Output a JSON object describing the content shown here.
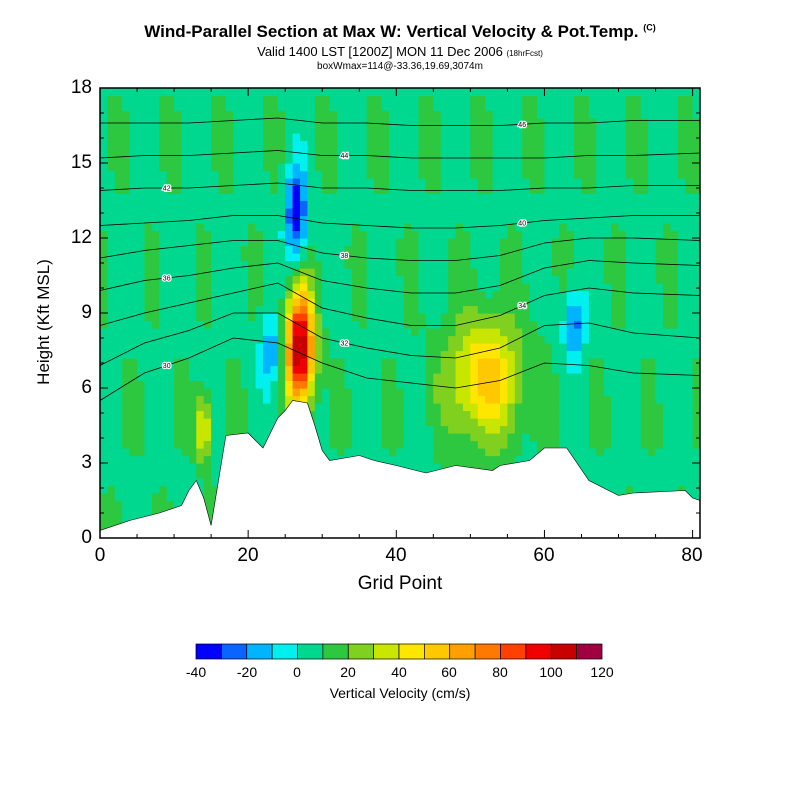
{
  "chart_data": {
    "type": "heatmap",
    "title": "Wind-Parallel Section at Max W: Vertical Velocity & Pot.Temp.",
    "title_mark": "(C)",
    "subtitle": "Valid 1400 LST [1200Z] MON 11 Dec 2006",
    "subtitle_note": "(18hrFcst)",
    "info": "boxWmax=114@-33.36,19.69,3074m",
    "xlabel": "Grid Point",
    "ylabel": "Height (Kft MSL)",
    "xlim": [
      0,
      81
    ],
    "ylim": [
      0,
      18
    ],
    "x_ticks": [
      "0",
      "20",
      "40",
      "60",
      "80"
    ],
    "y_ticks": [
      "0",
      "3",
      "6",
      "9",
      "12",
      "15",
      "18"
    ],
    "colorbar": {
      "label": "Vertical Velocity (cm/s)",
      "levels": [
        -40,
        -30,
        -20,
        -10,
        0,
        10,
        20,
        30,
        40,
        50,
        60,
        70,
        80,
        90,
        100,
        110,
        120
      ],
      "tick_labels": [
        "-40",
        "-20",
        "0",
        "20",
        "40",
        "60",
        "80",
        "100",
        "120"
      ],
      "colors": [
        "#0000ff",
        "#0a64ff",
        "#00b4ff",
        "#00f0f0",
        "#00d890",
        "#2ec840",
        "#80d020",
        "#c8e600",
        "#ffe600",
        "#ffc800",
        "#ffa000",
        "#ff7800",
        "#ff4000",
        "#f00000",
        "#c80000",
        "#a00040"
      ]
    },
    "background_w": 8,
    "updraft_cores": [
      {
        "x": 27,
        "y": 7.6,
        "peak": 114
      },
      {
        "x": 52,
        "y": 6.4,
        "peak": 55
      },
      {
        "x": 14,
        "y": 4.4,
        "peak": 50
      }
    ],
    "downdraft_cores": [
      {
        "x": 26.5,
        "y": 13,
        "peak": -40
      },
      {
        "x": 23,
        "y": 7.5,
        "peak": -20
      },
      {
        "x": 64,
        "y": 8.5,
        "peak": -25
      }
    ],
    "terrain": {
      "x": [
        0,
        4,
        8,
        11,
        12,
        13,
        14,
        15,
        16,
        17,
        20,
        22,
        23,
        24,
        25,
        26,
        28,
        29,
        30,
        31,
        35,
        37,
        40,
        44,
        48,
        53,
        54,
        58,
        60,
        63,
        66,
        68,
        70,
        72,
        79,
        80,
        81
      ],
      "height": [
        0.3,
        0.7,
        1.0,
        1.3,
        1.9,
        2.3,
        1.6,
        0.5,
        2.3,
        4.1,
        4.2,
        3.6,
        4.2,
        4.8,
        5.1,
        5.5,
        5.4,
        4.5,
        3.5,
        3.1,
        3.3,
        3.1,
        2.9,
        2.6,
        2.9,
        2.7,
        2.9,
        3.1,
        3.6,
        3.6,
        2.3,
        2.0,
        1.7,
        1.8,
        1.9,
        1.6,
        1.5
      ]
    },
    "theta_contours": [
      {
        "label": "30",
        "heights": [
          5.5,
          6.6,
          7.2,
          8.0,
          7.8,
          7.0,
          6.4,
          6.2,
          6.0,
          6.3,
          7.0,
          6.9,
          6.6,
          6.5
        ]
      },
      {
        "label": "32",
        "heights": [
          6.9,
          7.8,
          8.3,
          9.0,
          9.0,
          8.0,
          7.6,
          7.3,
          7.2,
          7.6,
          8.5,
          8.6,
          8.2,
          8.0
        ]
      },
      {
        "label": "34",
        "heights": [
          8.5,
          9.0,
          9.4,
          9.8,
          10.2,
          9.2,
          8.8,
          8.5,
          8.5,
          8.9,
          9.7,
          10.0,
          9.8,
          9.7
        ]
      },
      {
        "label": "36",
        "heights": [
          9.9,
          10.3,
          10.5,
          10.8,
          11.0,
          10.3,
          10.0,
          9.8,
          9.8,
          10.1,
          10.8,
          11.1,
          11.0,
          10.9
        ]
      },
      {
        "label": "38",
        "heights": [
          11.2,
          11.5,
          11.7,
          11.9,
          11.9,
          11.4,
          11.2,
          11.1,
          11.1,
          11.3,
          11.8,
          12.0,
          12.0,
          11.9
        ]
      },
      {
        "label": "40",
        "heights": [
          12.5,
          12.6,
          12.7,
          12.9,
          12.9,
          12.6,
          12.5,
          12.4,
          12.4,
          12.5,
          12.7,
          12.8,
          12.9,
          12.9
        ]
      },
      {
        "label": "42",
        "heights": [
          13.9,
          14.0,
          14.0,
          14.1,
          14.2,
          14.0,
          14.0,
          13.9,
          13.9,
          13.9,
          14.0,
          14.0,
          14.1,
          14.1
        ]
      },
      {
        "label": "44",
        "heights": [
          15.2,
          15.3,
          15.3,
          15.4,
          15.5,
          15.3,
          15.3,
          15.2,
          15.2,
          15.2,
          15.2,
          15.3,
          15.3,
          15.4
        ]
      },
      {
        "label": "46",
        "heights": [
          16.6,
          16.6,
          16.6,
          16.7,
          16.8,
          16.6,
          16.6,
          16.5,
          16.5,
          16.5,
          16.6,
          16.6,
          16.7,
          16.7
        ]
      }
    ],
    "contour_x": [
      0,
      6,
      12,
      18,
      24,
      30,
      36,
      42,
      48,
      54,
      60,
      66,
      72,
      81
    ]
  }
}
